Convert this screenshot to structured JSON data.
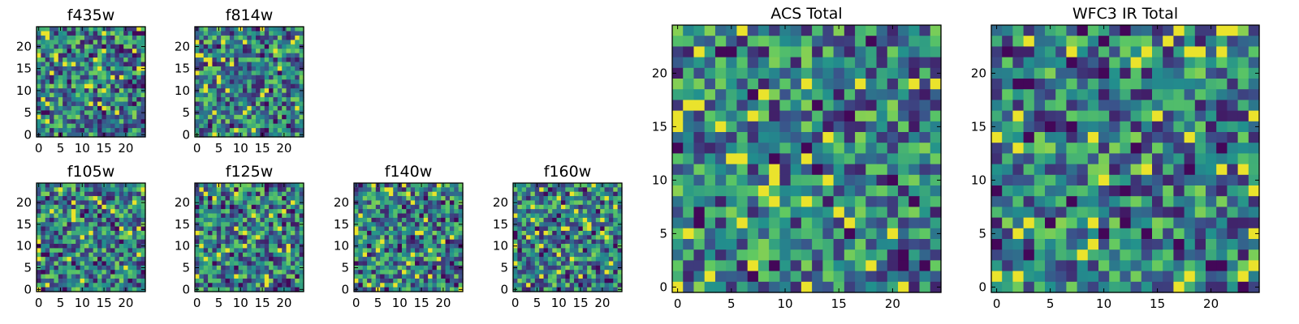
{
  "chart_data": [
    {
      "type": "heatmap",
      "title": "f435w",
      "grid": "25x25 pixel cutout",
      "colormap": "viridis",
      "xticks": [
        "0",
        "5",
        "10",
        "15",
        "20"
      ],
      "yticks": [
        "0",
        "5",
        "10",
        "15",
        "20"
      ],
      "xlim": [
        0,
        25
      ],
      "ylim": [
        0,
        25
      ]
    },
    {
      "type": "heatmap",
      "title": "f814w",
      "grid": "25x25 pixel cutout",
      "colormap": "viridis",
      "xticks": [
        "0",
        "5",
        "10",
        "15",
        "20"
      ],
      "yticks": [
        "0",
        "5",
        "10",
        "15",
        "20"
      ],
      "xlim": [
        0,
        25
      ],
      "ylim": [
        0,
        25
      ]
    },
    {
      "type": "heatmap",
      "title": "f105w",
      "grid": "25x25 pixel cutout",
      "colormap": "viridis",
      "xticks": [
        "0",
        "5",
        "10",
        "15",
        "20"
      ],
      "yticks": [
        "0",
        "5",
        "10",
        "15",
        "20"
      ],
      "xlim": [
        0,
        25
      ],
      "ylim": [
        0,
        25
      ]
    },
    {
      "type": "heatmap",
      "title": "f125w",
      "grid": "25x25 pixel cutout",
      "colormap": "viridis",
      "xticks": [
        "0",
        "5",
        "10",
        "15",
        "20"
      ],
      "yticks": [
        "0",
        "5",
        "10",
        "15",
        "20"
      ],
      "xlim": [
        0,
        25
      ],
      "ylim": [
        0,
        25
      ]
    },
    {
      "type": "heatmap",
      "title": "f140w",
      "grid": "25x25 pixel cutout",
      "colormap": "viridis",
      "xticks": [
        "0",
        "5",
        "10",
        "15",
        "20"
      ],
      "yticks": [
        "0",
        "5",
        "10",
        "15",
        "20"
      ],
      "xlim": [
        0,
        25
      ],
      "ylim": [
        0,
        25
      ]
    },
    {
      "type": "heatmap",
      "title": "f160w",
      "grid": "25x25 pixel cutout",
      "colormap": "viridis",
      "xticks": [
        "0",
        "5",
        "10",
        "15",
        "20"
      ],
      "yticks": [
        "0",
        "5",
        "10",
        "15",
        "20"
      ],
      "xlim": [
        0,
        25
      ],
      "ylim": [
        0,
        25
      ]
    },
    {
      "type": "heatmap",
      "title": "ACS Total",
      "grid": "25x25 pixel cutout",
      "colormap": "viridis",
      "xticks": [
        "0",
        "5",
        "10",
        "15",
        "20"
      ],
      "yticks": [
        "0",
        "5",
        "10",
        "15",
        "20"
      ],
      "xlim": [
        0,
        25
      ],
      "ylim": [
        0,
        25
      ]
    },
    {
      "type": "heatmap",
      "title": "WFC3 IR Total",
      "grid": "25x25 pixel cutout",
      "colormap": "viridis",
      "xticks": [
        "0",
        "5",
        "10",
        "15",
        "20"
      ],
      "yticks": [
        "0",
        "5",
        "10",
        "15",
        "20"
      ],
      "xlim": [
        0,
        25
      ],
      "ylim": [
        0,
        25
      ]
    }
  ],
  "colors": {
    "viridis": [
      "#440154",
      "#3b528b",
      "#21908d",
      "#5dc863",
      "#fde725"
    ],
    "frame": "#000000",
    "background": "#ffffff"
  }
}
